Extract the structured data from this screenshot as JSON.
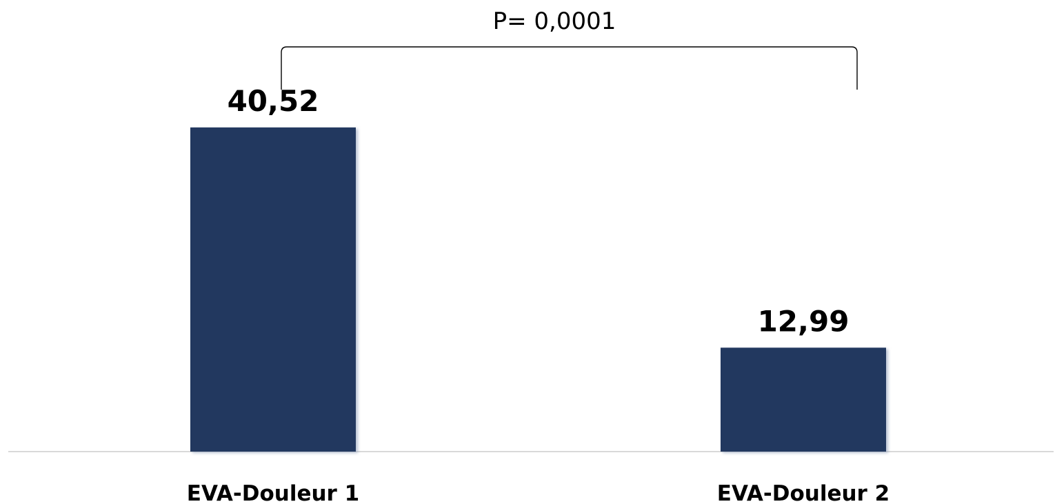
{
  "chart_data": {
    "type": "bar",
    "categories": [
      "EVA-Douleur 1",
      "EVA-Douleur 2"
    ],
    "values": [
      40.52,
      12.99
    ],
    "data_labels": [
      "40,52",
      "12,99"
    ],
    "ylim": [
      0,
      53
    ],
    "grid": false,
    "bar_color": "#22375F",
    "annotation": {
      "text": "P= 0,0001",
      "type": "bracket",
      "spans": [
        "EVA-Douleur 1",
        "EVA-Douleur 2"
      ]
    }
  }
}
